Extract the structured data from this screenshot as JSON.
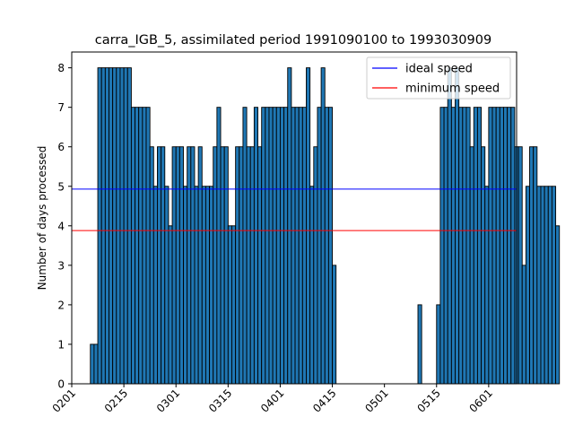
{
  "chart_data": {
    "type": "bar",
    "title": "carra_IGB_5, assimilated period 1991090100 to 1993030909",
    "xlabel": "",
    "ylabel": "Number of days processed",
    "ylim": [
      0,
      8.4
    ],
    "yticks": [
      0,
      1,
      2,
      3,
      4,
      5,
      6,
      7,
      8
    ],
    "xticks": [
      "0201",
      "0215",
      "0301",
      "0315",
      "0401",
      "0415",
      "0501",
      "0515",
      "0601"
    ],
    "xtick_day_index": [
      0,
      14,
      28,
      42,
      56,
      70,
      84,
      98,
      112
    ],
    "xlim_days": [
      0,
      119.5
    ],
    "bar_color": "#1f77b4",
    "bar_edge_color": "#000000",
    "values": [
      0,
      0,
      0,
      0,
      0,
      1,
      1,
      8,
      8,
      8,
      8,
      8,
      8,
      8,
      8,
      8,
      7,
      7,
      7,
      7,
      7,
      6,
      5,
      6,
      6,
      5,
      4,
      6,
      6,
      6,
      5,
      6,
      6,
      5,
      6,
      5,
      5,
      5,
      6,
      7,
      6,
      6,
      4,
      4,
      6,
      6,
      7,
      6,
      6,
      7,
      6,
      7,
      7,
      7,
      7,
      7,
      7,
      7,
      8,
      7,
      7,
      7,
      7,
      8,
      5,
      6,
      7,
      8,
      7,
      7,
      3,
      0,
      0,
      0,
      0,
      0,
      0,
      0,
      0,
      0,
      0,
      0,
      0,
      0,
      0,
      0,
      0,
      0,
      0,
      0,
      0,
      0,
      0,
      2,
      0,
      0,
      0,
      0,
      2,
      7,
      7,
      8,
      7,
      8,
      7,
      7,
      7,
      6,
      7,
      7,
      6,
      5,
      7,
      7,
      7,
      7,
      7,
      7,
      7,
      6,
      6,
      3,
      5,
      6,
      6,
      5,
      5,
      5,
      5,
      5,
      4
    ],
    "lines": [
      {
        "name": "ideal speed",
        "value": 4.93,
        "color": "#0000ff"
      },
      {
        "name": "minimum speed",
        "value": 3.88,
        "color": "#ff0000"
      }
    ],
    "legend_position": "top-right",
    "grid": false
  }
}
